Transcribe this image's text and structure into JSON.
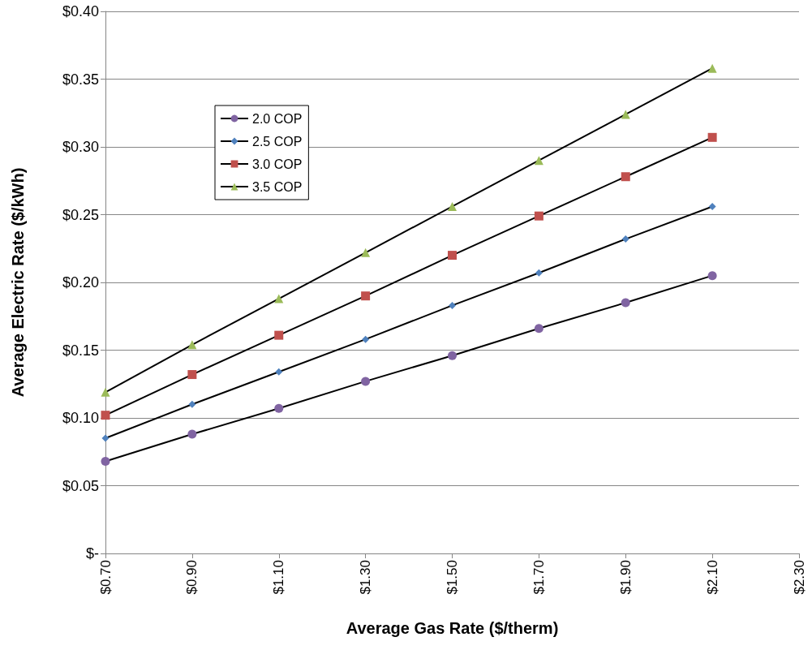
{
  "chart_data": {
    "type": "line",
    "xlabel": "Average Gas Rate ($/therm)",
    "ylabel": "Average Electric Rate ($/kWh)",
    "x": [
      0.7,
      0.9,
      1.1,
      1.3,
      1.5,
      1.7,
      1.9,
      2.1
    ],
    "series": [
      {
        "name": "2.0 COP",
        "color": "#8064a2",
        "marker": "circle",
        "values": [
          0.068,
          0.088,
          0.107,
          0.127,
          0.146,
          0.166,
          0.185,
          0.205
        ]
      },
      {
        "name": "2.5 COP",
        "color": "#4f81bd",
        "marker": "diamond",
        "values": [
          0.085,
          0.11,
          0.134,
          0.158,
          0.183,
          0.207,
          0.232,
          0.256
        ]
      },
      {
        "name": "3.0 COP",
        "color": "#c0504d",
        "marker": "square",
        "values": [
          0.102,
          0.132,
          0.161,
          0.19,
          0.22,
          0.249,
          0.278,
          0.307
        ]
      },
      {
        "name": "3.5 COP",
        "color": "#9bbb59",
        "marker": "triangle",
        "values": [
          0.119,
          0.154,
          0.188,
          0.222,
          0.256,
          0.29,
          0.324,
          0.358
        ]
      }
    ],
    "xlim": [
      0.7,
      2.3
    ],
    "xticks": [
      {
        "value": 0.7,
        "label": "$0.70"
      },
      {
        "value": 0.9,
        "label": "$0.90"
      },
      {
        "value": 1.1,
        "label": "$1.10"
      },
      {
        "value": 1.3,
        "label": "$1.30"
      },
      {
        "value": 1.5,
        "label": "$1.50"
      },
      {
        "value": 1.7,
        "label": "$1.70"
      },
      {
        "value": 1.9,
        "label": "$1.90"
      },
      {
        "value": 2.1,
        "label": "$2.10"
      },
      {
        "value": 2.3,
        "label": "$2.30"
      }
    ],
    "ylim": [
      0,
      0.4
    ],
    "yticks": [
      {
        "value": 0,
        "label": "$-"
      },
      {
        "value": 0.05,
        "label": "$0.05"
      },
      {
        "value": 0.1,
        "label": "$0.10"
      },
      {
        "value": 0.15,
        "label": "$0.15"
      },
      {
        "value": 0.2,
        "label": "$0.20"
      },
      {
        "value": 0.25,
        "label": "$0.25"
      },
      {
        "value": 0.3,
        "label": "$0.30"
      },
      {
        "value": 0.35,
        "label": "$0.35"
      },
      {
        "value": 0.4,
        "label": "$0.40"
      }
    ],
    "grid": "y",
    "legend": "top left",
    "line_style": "solid"
  }
}
